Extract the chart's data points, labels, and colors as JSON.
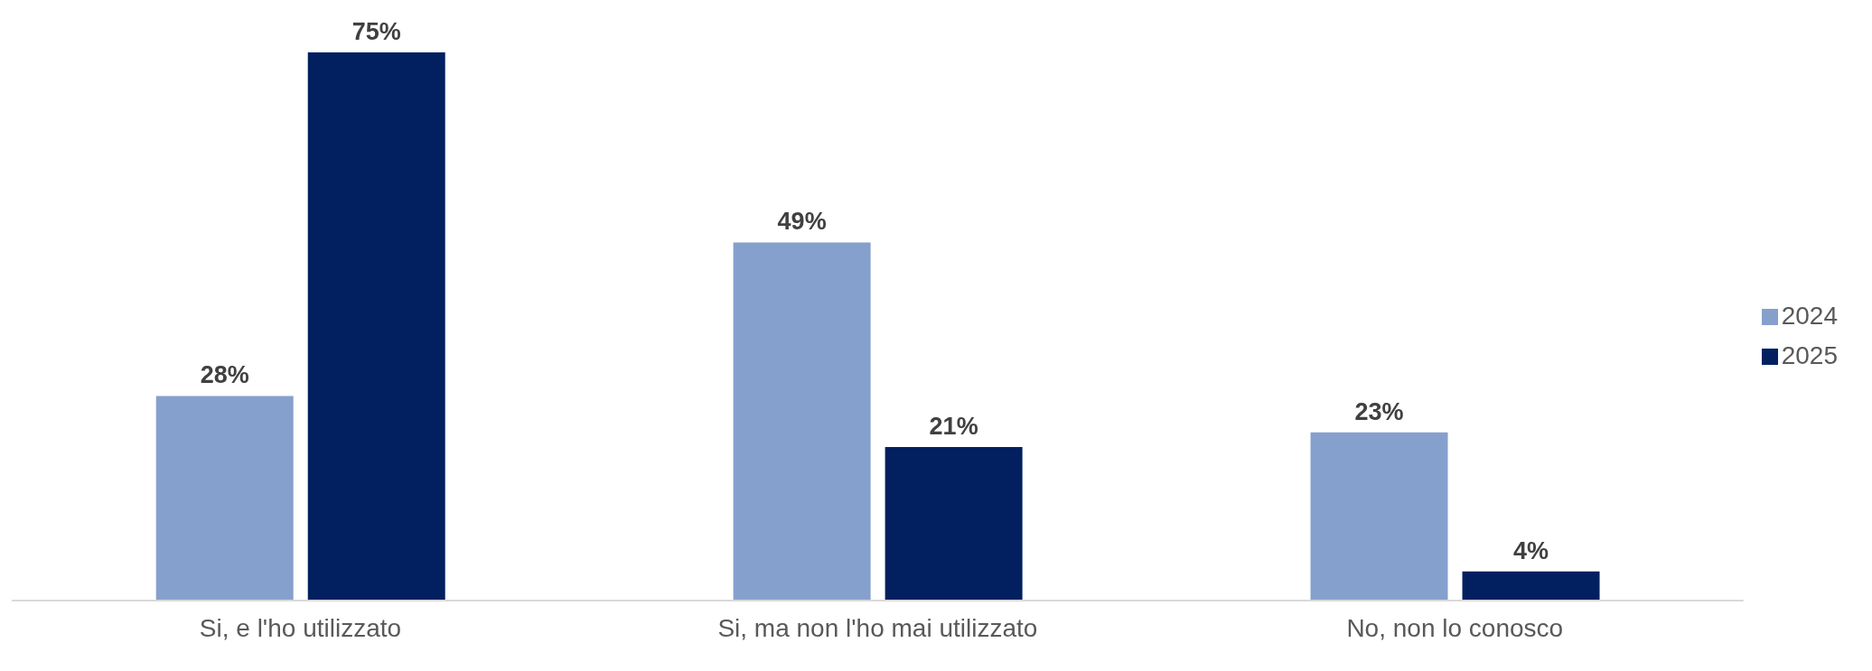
{
  "chart_data": {
    "type": "bar",
    "categories": [
      "Si, e l'ho utilizzato",
      "Si, ma non l'ho mai utilizzato",
      "No, non lo conosco"
    ],
    "series": [
      {
        "name": "2024",
        "color": "#86a0cd",
        "values": [
          28,
          49,
          23
        ],
        "value_labels": [
          "28%",
          "49%",
          "23%"
        ]
      },
      {
        "name": "2025",
        "color": "#022060",
        "values": [
          75,
          21,
          4
        ],
        "value_labels": [
          "75%",
          "21%",
          "4%"
        ]
      }
    ],
    "legend": "right",
    "grid": false
  }
}
